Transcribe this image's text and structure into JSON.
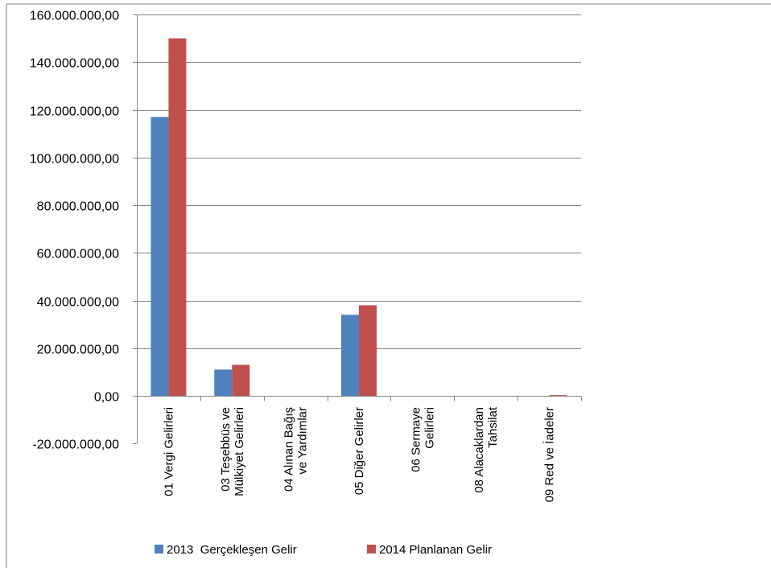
{
  "chart_data": {
    "type": "bar",
    "title": "",
    "xlabel": "",
    "ylabel": "",
    "ylim": [
      -20000000,
      160000000
    ],
    "yticks": [
      160000000,
      140000000,
      120000000,
      100000000,
      80000000,
      60000000,
      40000000,
      20000000,
      0,
      -20000000
    ],
    "ytick_labels": [
      "160.000.000,00",
      "140.000.000,00",
      "120.000.000,00",
      "100.000.000,00",
      "80.000.000,00",
      "60.000.000,00",
      "40.000.000,00",
      "20.000.000,00",
      "0,00",
      "-20.000.000,00"
    ],
    "negative_tick_color": "#ff0000",
    "grid": true,
    "legend_position": "bottom",
    "categories": [
      [
        "01 Vergi Gelirleri"
      ],
      [
        "03 Teşebbüs ve",
        "Mülkiyet Gelirleri"
      ],
      [
        "04 Alınan Bağış",
        "ve Yardımlar"
      ],
      [
        "05 Diğer Gelirler"
      ],
      [
        "06 Sermaye",
        "Gelirleri"
      ],
      [
        "08 Alacaklardan",
        "Tahsilat"
      ],
      [
        "09 Red ve İadeler"
      ]
    ],
    "series": [
      {
        "name": "2013  Gerçekleşen Gelir",
        "color": "#4f81bd",
        "values": [
          117000000,
          11000000,
          0,
          34000000,
          0,
          0,
          0
        ]
      },
      {
        "name": "2014 Planlanan Gelir",
        "color": "#c0504d",
        "values": [
          150000000,
          13000000,
          0,
          38000000,
          0,
          0,
          300000
        ]
      }
    ]
  }
}
